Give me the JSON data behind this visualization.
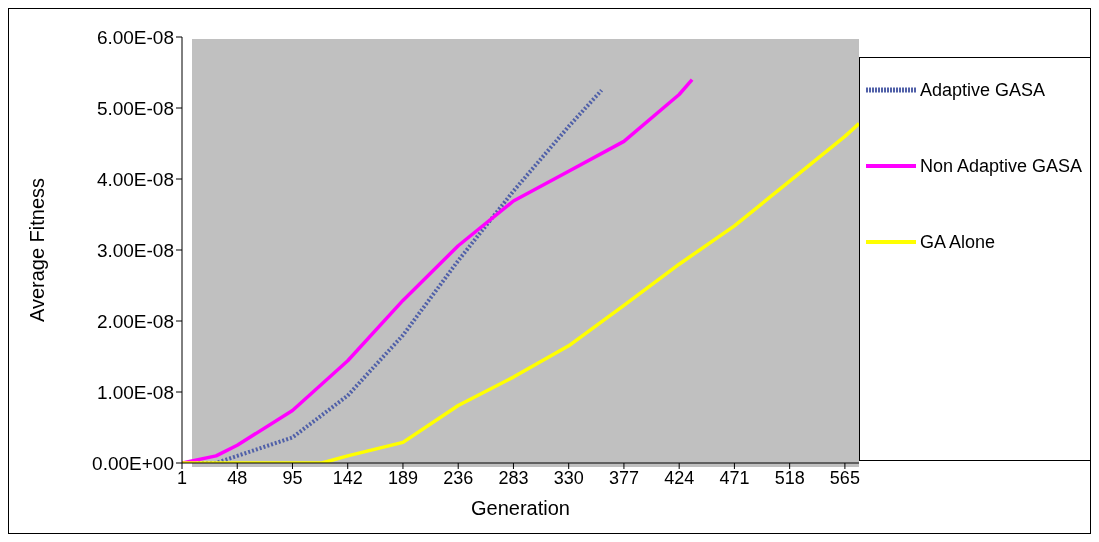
{
  "chart_data": {
    "type": "line",
    "xlabel": "Generation",
    "ylabel": "Average Fitness",
    "legend": "right",
    "grid": false,
    "marker": "none",
    "xlim": [
      1,
      577
    ],
    "xticks": [
      1,
      48,
      95,
      142,
      189,
      236,
      283,
      330,
      377,
      424,
      471,
      518,
      565
    ],
    "ylim": [
      0,
      6e-08
    ],
    "yticks": [
      {
        "value": 0,
        "label": "0.00E+00"
      },
      {
        "value": 1e-08,
        "label": "1.00E-08"
      },
      {
        "value": 2e-08,
        "label": "2.00E-08"
      },
      {
        "value": 3e-08,
        "label": "3.00E-08"
      },
      {
        "value": 4e-08,
        "label": "4.00E-08"
      },
      {
        "value": 5e-08,
        "label": "5.00E-08"
      },
      {
        "value": 6e-08,
        "label": "6.00E-08"
      }
    ],
    "series": [
      {
        "name": "Adaptive GASA",
        "color": "#5060a8",
        "line_style": "dotted",
        "x": [
          1,
          30,
          48,
          95,
          142,
          189,
          236,
          283,
          330,
          358
        ],
        "values": [
          0,
          0,
          1e-09,
          3.6e-09,
          9.5e-09,
          1.8e-08,
          2.85e-08,
          3.83e-08,
          4.74e-08,
          5.25e-08
        ]
      },
      {
        "name": "Non Adaptive GASA",
        "color": "#ff00ff",
        "line_style": "solid",
        "x": [
          1,
          30,
          48,
          95,
          142,
          189,
          236,
          283,
          330,
          377,
          424,
          435
        ],
        "values": [
          0,
          1e-09,
          2.5e-09,
          7.4e-09,
          1.44e-08,
          2.29e-08,
          3.06e-08,
          3.69e-08,
          4.11e-08,
          4.53e-08,
          5.19e-08,
          5.4e-08
        ]
      },
      {
        "name": "GA Alone",
        "color": "#ffff00",
        "line_style": "solid",
        "x": [
          1,
          95,
          120,
          142,
          189,
          236,
          283,
          330,
          377,
          424,
          471,
          518,
          565,
          577
        ],
        "values": [
          0,
          0,
          0,
          1e-09,
          2.9e-09,
          8.1e-09,
          1.21e-08,
          1.65e-08,
          2.22e-08,
          2.8e-08,
          3.34e-08,
          3.97e-08,
          4.6e-08,
          4.78e-08
        ]
      }
    ]
  }
}
